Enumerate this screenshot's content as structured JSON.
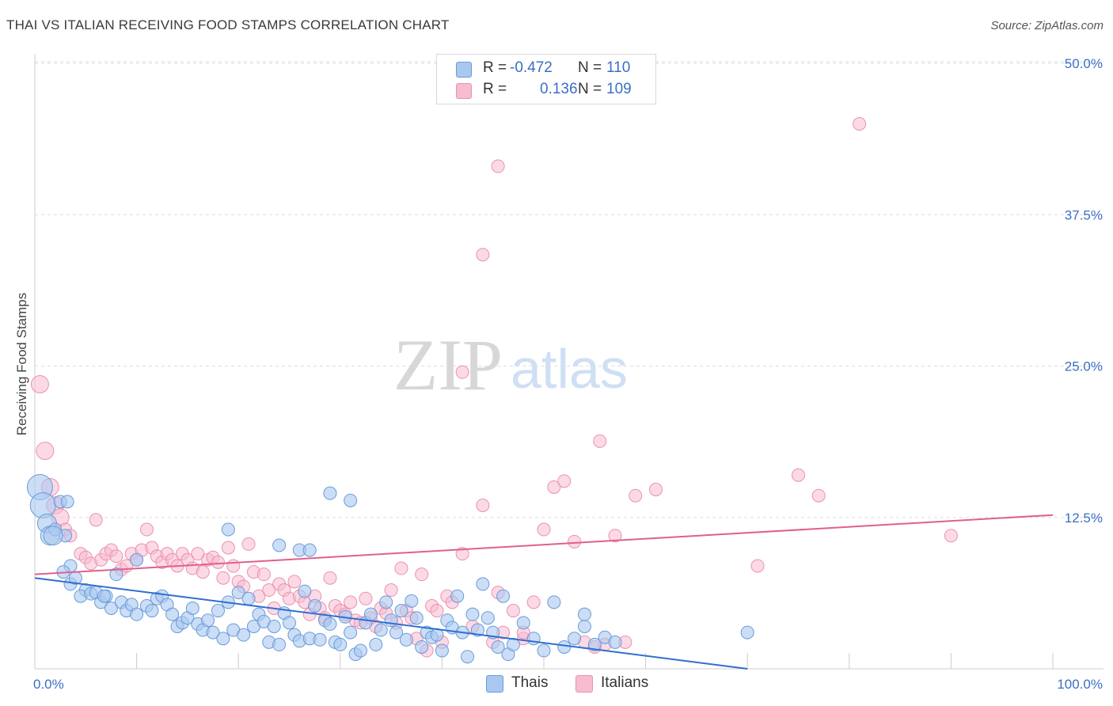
{
  "header": {
    "title": "THAI VS ITALIAN RECEIVING FOOD STAMPS CORRELATION CHART",
    "source": "Source: ZipAtlas.com"
  },
  "legend": {
    "rows": [
      {
        "r_label": "R =",
        "r_value": "-0.472",
        "n_label": "N =",
        "n_value": "110"
      },
      {
        "r_label": "R =",
        "r_value": "0.136",
        "n_label": "N =",
        "n_value": "109"
      }
    ]
  },
  "bottom_legend": {
    "thais": "Thais",
    "italians": "Italians"
  },
  "colors": {
    "thai_fill": "#a9c8f0",
    "thai_stroke": "#6a9bd8",
    "thai_line": "#2f6fd0",
    "italian_fill": "#f7bcd0",
    "italian_stroke": "#ec90b0",
    "italian_line": "#e0608c",
    "tick_label": "#3b6fc4",
    "grid": "#dddddd"
  },
  "chart_data": {
    "type": "scatter",
    "title": "THAI VS ITALIAN RECEIVING FOOD STAMPS CORRELATION CHART",
    "xlabel": "",
    "ylabel": "Receiving Food Stamps",
    "xlim": [
      0,
      100
    ],
    "ylim": [
      0,
      50
    ],
    "x_tick_labels": [
      "0.0%",
      "100.0%"
    ],
    "y_ticks": [
      12.5,
      25.0,
      37.5,
      50.0
    ],
    "y_tick_labels": [
      "12.5%",
      "25.0%",
      "37.5%",
      "50.0%"
    ],
    "grid": "horizontal dashed",
    "legend_position": "top-center",
    "watermark": {
      "part1": "ZIP",
      "part2": "atlas"
    },
    "series": [
      {
        "name": "Thais",
        "r": -0.472,
        "n": 110,
        "trend": {
          "x": [
            0,
            70
          ],
          "y": [
            7.5,
            0
          ]
        },
        "points": [
          [
            0.5,
            15.0
          ],
          [
            0.8,
            13.5
          ],
          [
            1.2,
            12.0
          ],
          [
            1.5,
            11.0
          ],
          [
            2.0,
            11.5
          ],
          [
            3.0,
            11.0
          ],
          [
            3.5,
            8.5
          ],
          [
            2.5,
            13.8
          ],
          [
            2.8,
            8.0
          ],
          [
            3.5,
            7.0
          ],
          [
            4.0,
            7.5
          ],
          [
            5.0,
            6.5
          ],
          [
            4.5,
            6.0
          ],
          [
            5.5,
            6.2
          ],
          [
            6.0,
            6.3
          ],
          [
            6.5,
            5.5
          ],
          [
            7.0,
            6.0
          ],
          [
            7.5,
            5.0
          ],
          [
            8.0,
            7.8
          ],
          [
            8.5,
            5.5
          ],
          [
            9.0,
            4.8
          ],
          [
            9.5,
            5.3
          ],
          [
            10.0,
            4.5
          ],
          [
            11.0,
            5.2
          ],
          [
            11.5,
            4.8
          ],
          [
            12.0,
            5.8
          ],
          [
            12.5,
            6.0
          ],
          [
            13.0,
            5.3
          ],
          [
            13.5,
            4.5
          ],
          [
            14.0,
            3.5
          ],
          [
            14.5,
            3.8
          ],
          [
            15.0,
            4.2
          ],
          [
            15.5,
            5.0
          ],
          [
            16.0,
            3.7
          ],
          [
            16.5,
            3.2
          ],
          [
            17.0,
            4.0
          ],
          [
            17.5,
            3.0
          ],
          [
            18.0,
            4.8
          ],
          [
            18.5,
            2.5
          ],
          [
            19.0,
            5.5
          ],
          [
            19.5,
            3.2
          ],
          [
            20.0,
            6.3
          ],
          [
            20.5,
            2.8
          ],
          [
            21.0,
            5.8
          ],
          [
            21.5,
            3.5
          ],
          [
            22.0,
            4.5
          ],
          [
            22.5,
            3.9
          ],
          [
            23.0,
            2.2
          ],
          [
            23.5,
            3.5
          ],
          [
            24.0,
            2.0
          ],
          [
            24.5,
            4.6
          ],
          [
            25.0,
            3.8
          ],
          [
            25.5,
            2.8
          ],
          [
            26.0,
            2.3
          ],
          [
            26.5,
            6.4
          ],
          [
            27.0,
            2.5
          ],
          [
            27.5,
            5.2
          ],
          [
            28.0,
            2.4
          ],
          [
            28.5,
            4.0
          ],
          [
            29.0,
            3.7
          ],
          [
            29.5,
            2.2
          ],
          [
            30.0,
            2.0
          ],
          [
            30.5,
            4.3
          ],
          [
            31.0,
            3.0
          ],
          [
            31.5,
            1.2
          ],
          [
            32.0,
            1.5
          ],
          [
            32.5,
            3.8
          ],
          [
            33.0,
            4.5
          ],
          [
            33.5,
            2.0
          ],
          [
            34.0,
            3.2
          ],
          [
            34.5,
            5.5
          ],
          [
            35.0,
            4.0
          ],
          [
            35.5,
            3.0
          ],
          [
            36.0,
            4.8
          ],
          [
            36.5,
            2.4
          ],
          [
            37.0,
            5.6
          ],
          [
            37.5,
            4.2
          ],
          [
            38.0,
            1.8
          ],
          [
            38.5,
            3.0
          ],
          [
            39.0,
            2.6
          ],
          [
            39.5,
            2.8
          ],
          [
            40.0,
            1.5
          ],
          [
            40.5,
            4.0
          ],
          [
            41.0,
            3.4
          ],
          [
            41.5,
            6.0
          ],
          [
            42.0,
            3.0
          ],
          [
            42.5,
            1.0
          ],
          [
            43.0,
            4.5
          ],
          [
            43.5,
            3.2
          ],
          [
            44.0,
            7.0
          ],
          [
            44.5,
            4.2
          ],
          [
            45.0,
            3.0
          ],
          [
            45.5,
            1.8
          ],
          [
            46.0,
            6.0
          ],
          [
            46.5,
            1.2
          ],
          [
            47.0,
            2.0
          ],
          [
            48.0,
            3.8
          ],
          [
            49.0,
            2.5
          ],
          [
            50.0,
            1.5
          ],
          [
            51.0,
            5.5
          ],
          [
            52.0,
            1.8
          ],
          [
            53.0,
            2.5
          ],
          [
            54.0,
            3.5
          ],
          [
            55.0,
            2.0
          ],
          [
            56.0,
            2.6
          ],
          [
            57.0,
            2.2
          ],
          [
            24.0,
            10.2
          ],
          [
            26.0,
            9.8
          ],
          [
            27.0,
            9.8
          ],
          [
            10.0,
            9.0
          ],
          [
            19.0,
            11.5
          ],
          [
            29.0,
            14.5
          ],
          [
            31.0,
            13.9
          ],
          [
            54.0,
            4.5
          ],
          [
            70.0,
            3.0
          ],
          [
            3.2,
            13.8
          ],
          [
            1.8,
            11.0
          ],
          [
            6.8,
            6.0
          ]
        ]
      },
      {
        "name": "Italians",
        "r": 0.136,
        "n": 109,
        "trend": {
          "x": [
            0,
            100
          ],
          "y": [
            7.8,
            12.7
          ]
        },
        "points": [
          [
            0.5,
            23.5
          ],
          [
            1.0,
            18.0
          ],
          [
            1.5,
            15.0
          ],
          [
            2.0,
            13.5
          ],
          [
            2.5,
            12.5
          ],
          [
            3.0,
            11.5
          ],
          [
            3.5,
            11.0
          ],
          [
            4.5,
            9.5
          ],
          [
            5.0,
            9.2
          ],
          [
            5.5,
            8.7
          ],
          [
            6.0,
            12.3
          ],
          [
            6.5,
            9.0
          ],
          [
            7.0,
            9.5
          ],
          [
            7.5,
            9.8
          ],
          [
            8.0,
            9.3
          ],
          [
            8.5,
            8.2
          ],
          [
            9.0,
            8.5
          ],
          [
            9.5,
            9.5
          ],
          [
            10.0,
            9.0
          ],
          [
            10.5,
            9.8
          ],
          [
            11.0,
            11.5
          ],
          [
            11.5,
            10.0
          ],
          [
            12.0,
            9.3
          ],
          [
            12.5,
            8.8
          ],
          [
            13.0,
            9.5
          ],
          [
            13.5,
            9.0
          ],
          [
            14.0,
            8.5
          ],
          [
            14.5,
            9.5
          ],
          [
            15.0,
            9.0
          ],
          [
            15.5,
            8.3
          ],
          [
            16.0,
            9.5
          ],
          [
            16.5,
            8.0
          ],
          [
            17.0,
            9.0
          ],
          [
            17.5,
            9.2
          ],
          [
            18.0,
            8.8
          ],
          [
            18.5,
            7.5
          ],
          [
            19.0,
            10.0
          ],
          [
            19.5,
            8.5
          ],
          [
            20.0,
            7.2
          ],
          [
            20.5,
            6.8
          ],
          [
            21.0,
            10.3
          ],
          [
            21.5,
            8.0
          ],
          [
            22.0,
            6.0
          ],
          [
            22.5,
            7.8
          ],
          [
            23.0,
            6.5
          ],
          [
            23.5,
            5.0
          ],
          [
            24.0,
            7.0
          ],
          [
            24.5,
            6.5
          ],
          [
            25.0,
            5.8
          ],
          [
            25.5,
            7.2
          ],
          [
            26.0,
            6.0
          ],
          [
            26.5,
            5.5
          ],
          [
            27.0,
            4.5
          ],
          [
            27.5,
            6.0
          ],
          [
            28.0,
            5.0
          ],
          [
            28.5,
            4.2
          ],
          [
            29.0,
            7.5
          ],
          [
            29.5,
            5.2
          ],
          [
            30.0,
            4.8
          ],
          [
            30.5,
            4.5
          ],
          [
            31.0,
            5.5
          ],
          [
            31.5,
            4.0
          ],
          [
            32.0,
            3.8
          ],
          [
            32.5,
            5.8
          ],
          [
            33.0,
            4.2
          ],
          [
            33.5,
            3.5
          ],
          [
            34.0,
            5.0
          ],
          [
            34.5,
            4.6
          ],
          [
            35.0,
            6.5
          ],
          [
            35.5,
            3.8
          ],
          [
            36.0,
            8.3
          ],
          [
            36.5,
            4.8
          ],
          [
            37.0,
            4.2
          ],
          [
            37.5,
            2.5
          ],
          [
            38.0,
            7.8
          ],
          [
            38.5,
            1.5
          ],
          [
            39.0,
            5.2
          ],
          [
            39.5,
            4.8
          ],
          [
            40.0,
            2.2
          ],
          [
            40.5,
            6.0
          ],
          [
            41.0,
            5.5
          ],
          [
            42.0,
            9.5
          ],
          [
            43.0,
            3.5
          ],
          [
            44.0,
            13.5
          ],
          [
            45.0,
            2.2
          ],
          [
            45.5,
            6.3
          ],
          [
            46.0,
            3.0
          ],
          [
            47.0,
            4.8
          ],
          [
            48.0,
            2.5
          ],
          [
            49.0,
            5.5
          ],
          [
            50.0,
            11.5
          ],
          [
            51.0,
            15.0
          ],
          [
            52.0,
            15.5
          ],
          [
            53.0,
            10.5
          ],
          [
            54.0,
            2.2
          ],
          [
            55.0,
            1.8
          ],
          [
            56.0,
            2.0
          ],
          [
            57.0,
            11.0
          ],
          [
            58.0,
            2.2
          ],
          [
            59.0,
            14.3
          ],
          [
            61.0,
            14.8
          ],
          [
            71.0,
            8.5
          ],
          [
            75.0,
            16.0
          ],
          [
            77.0,
            14.3
          ],
          [
            90.0,
            11.0
          ],
          [
            81.0,
            45.0
          ],
          [
            45.5,
            41.5
          ],
          [
            44.0,
            34.2
          ],
          [
            42.0,
            24.5
          ],
          [
            48.0,
            3.0
          ],
          [
            55.5,
            18.8
          ]
        ]
      }
    ]
  }
}
